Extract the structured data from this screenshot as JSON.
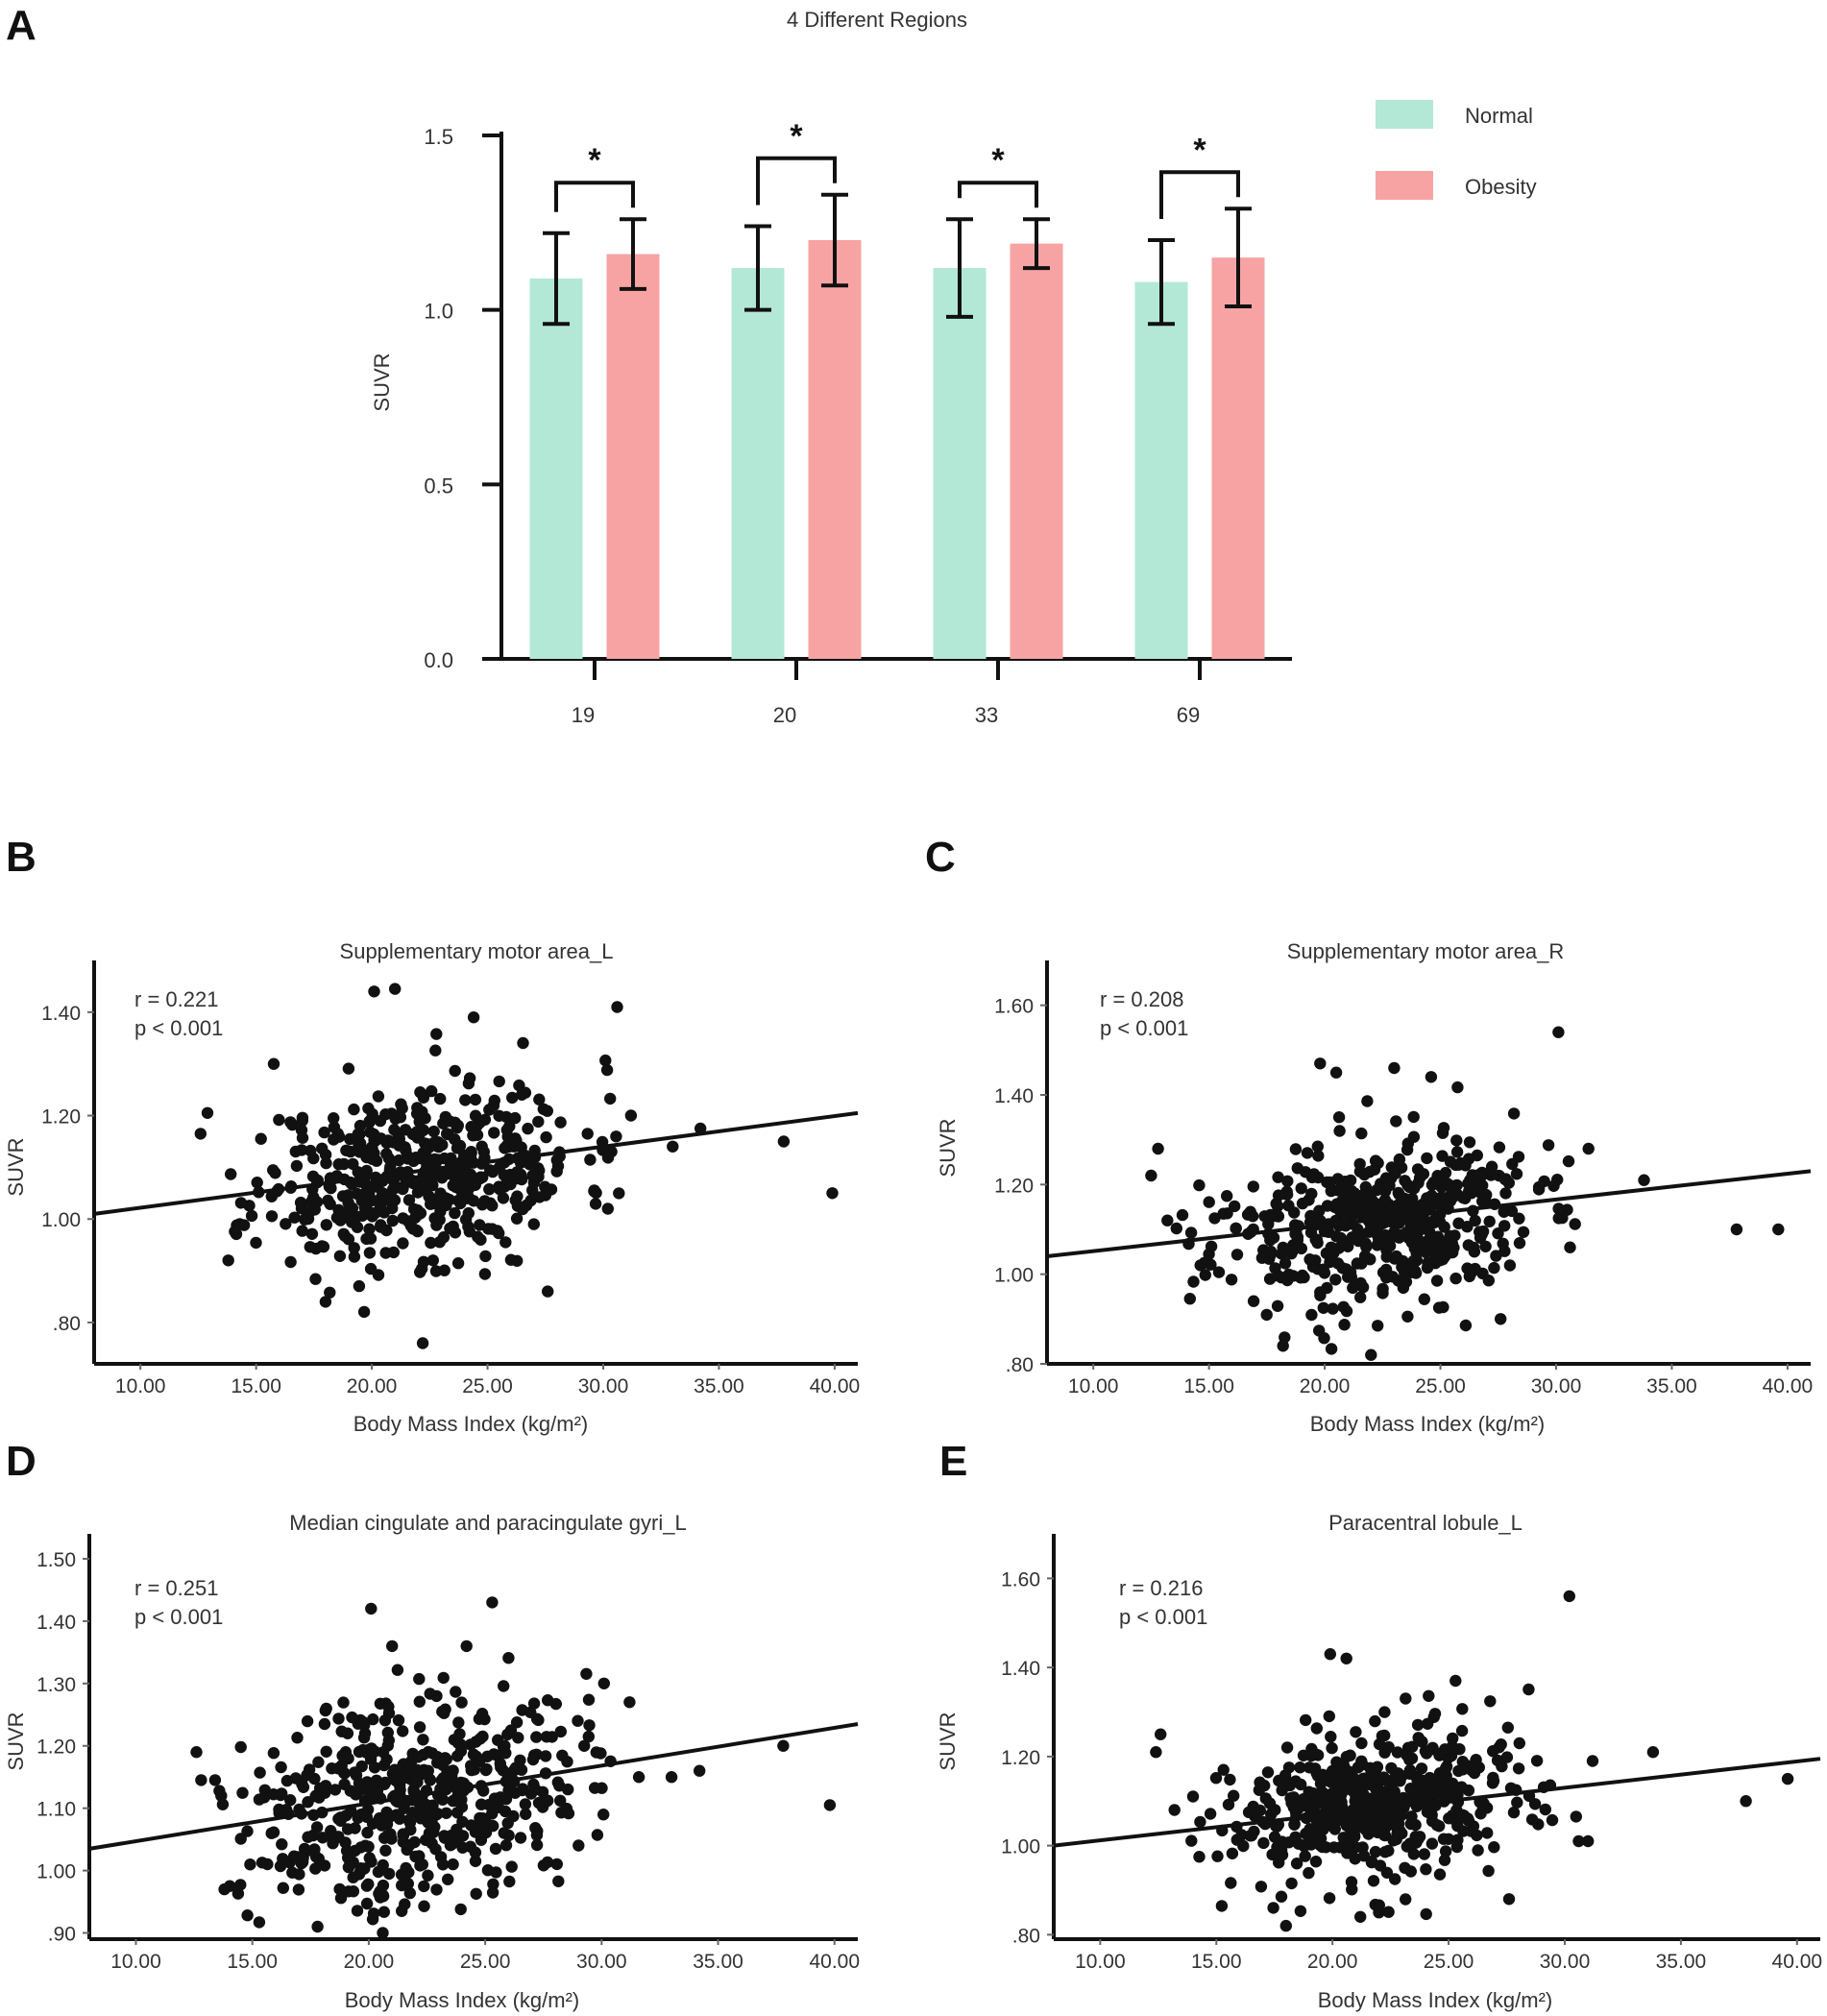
{
  "panels": {
    "a": "A",
    "b": "B",
    "c": "C",
    "d": "D",
    "e": "E"
  },
  "colors": {
    "normal": "#b3e8d6",
    "obesity": "#f7a3a3",
    "ink": "#111111"
  },
  "chart_data": [
    {
      "id": "A",
      "type": "bar",
      "title": "4 Different Regions",
      "xlabel": "",
      "ylabel": "SUVR",
      "ylim": [
        0,
        1.5
      ],
      "yticks": [
        "0.0",
        "0.5",
        "1.0",
        "1.5"
      ],
      "yticks_values": [
        0,
        0.5,
        1.0,
        1.5
      ],
      "categories": [
        "19",
        "20",
        "33",
        "69"
      ],
      "series": [
        {
          "name": "Normal",
          "values": [
            1.09,
            1.12,
            1.12,
            1.08
          ],
          "errors": [
            0.13,
            0.12,
            0.14,
            0.12
          ]
        },
        {
          "name": "Obesity",
          "values": [
            1.16,
            1.2,
            1.19,
            1.15
          ],
          "errors": [
            0.1,
            0.13,
            0.07,
            0.14
          ]
        }
      ],
      "significance": [
        "*",
        "*",
        "*",
        "*"
      ],
      "legend": "top-right"
    },
    {
      "id": "B",
      "type": "scatter",
      "title": "Supplementary motor area_L",
      "xlabel": "Body Mass Index (kg/m²)",
      "ylabel": "SUVR",
      "xlim": [
        8,
        41
      ],
      "ylim": [
        0.72,
        1.5
      ],
      "xticks": [
        "10.00",
        "15.00",
        "20.00",
        "25.00",
        "30.00",
        "35.00",
        "40.00"
      ],
      "xticks_values": [
        10,
        15,
        20,
        25,
        30,
        35,
        40
      ],
      "yticks": [
        ".80",
        "1.00",
        "1.20",
        "1.40"
      ],
      "yticks_values": [
        0.8,
        1.0,
        1.2,
        1.4
      ],
      "r_label": "r = 0.221",
      "p_label": "p < 0.001",
      "fit": {
        "x": [
          8,
          41
        ],
        "y": [
          1.01,
          1.205
        ]
      },
      "seed": 11,
      "center": [
        22.0,
        1.09
      ],
      "spread": [
        3.5,
        0.085
      ],
      "outliers": [
        [
          20.1,
          1.44
        ],
        [
          21.0,
          1.445
        ],
        [
          24.4,
          1.39
        ],
        [
          30.6,
          1.41
        ],
        [
          39.9,
          1.05
        ],
        [
          37.8,
          1.15
        ],
        [
          22.2,
          0.76
        ],
        [
          27.6,
          0.86
        ],
        [
          12.9,
          1.205
        ],
        [
          12.6,
          1.165
        ],
        [
          13.8,
          0.92
        ],
        [
          18.0,
          0.84
        ],
        [
          34.2,
          1.175
        ],
        [
          33.0,
          1.14
        ],
        [
          31.2,
          1.2
        ],
        [
          30.2,
          1.02
        ]
      ]
    },
    {
      "id": "C",
      "type": "scatter",
      "title": "Supplementary motor area_R",
      "xlabel": "Body Mass Index (kg/m²)",
      "ylabel": "SUVR",
      "xlim": [
        8,
        41
      ],
      "ylim": [
        0.8,
        1.7
      ],
      "xticks": [
        "10.00",
        "15.00",
        "20.00",
        "25.00",
        "30.00",
        "35.00",
        "40.00"
      ],
      "xticks_values": [
        10,
        15,
        20,
        25,
        30,
        35,
        40
      ],
      "yticks": [
        ".80",
        "1.00",
        "1.20",
        "1.40",
        "1.60"
      ],
      "yticks_values": [
        0.8,
        1.0,
        1.2,
        1.4,
        1.6
      ],
      "r_label": "r = 0.208",
      "p_label": "p < 0.001",
      "fit": {
        "x": [
          8,
          41
        ],
        "y": [
          1.04,
          1.23
        ]
      },
      "seed": 23,
      "center": [
        22.0,
        1.11
      ],
      "spread": [
        3.5,
        0.09
      ],
      "outliers": [
        [
          30.1,
          1.54
        ],
        [
          19.8,
          1.47
        ],
        [
          20.5,
          1.45
        ],
        [
          23.0,
          1.46
        ],
        [
          24.6,
          1.44
        ],
        [
          39.6,
          1.1
        ],
        [
          37.8,
          1.1
        ],
        [
          22.0,
          0.82
        ],
        [
          18.2,
          0.84
        ],
        [
          12.8,
          1.28
        ],
        [
          12.5,
          1.22
        ],
        [
          13.2,
          1.12
        ],
        [
          33.8,
          1.21
        ],
        [
          31.4,
          1.28
        ],
        [
          27.6,
          0.9
        ],
        [
          30.6,
          1.06
        ]
      ]
    },
    {
      "id": "D",
      "type": "scatter",
      "title": "Median cingulate and paracingulate gyri_L",
      "xlabel": "Body Mass Index (kg/m²)",
      "ylabel": "SUVR",
      "xlim": [
        8,
        41
      ],
      "ylim": [
        0.89,
        1.54
      ],
      "xticks": [
        "10.00",
        "15.00",
        "20.00",
        "25.00",
        "30.00",
        "35.00",
        "40.00"
      ],
      "xticks_values": [
        10,
        15,
        20,
        25,
        30,
        35,
        40
      ],
      "yticks": [
        ".90",
        "1.00",
        "1.10",
        "1.20",
        "1.30",
        "1.40",
        "1.50"
      ],
      "yticks_values": [
        0.9,
        1.0,
        1.1,
        1.2,
        1.3,
        1.4,
        1.5
      ],
      "r_label": "r = 0.251",
      "p_label": "p < 0.001",
      "fit": {
        "x": [
          8,
          41
        ],
        "y": [
          1.035,
          1.235
        ]
      },
      "seed": 37,
      "center": [
        22.0,
        1.12
      ],
      "spread": [
        3.5,
        0.085
      ],
      "outliers": [
        [
          25.3,
          1.43
        ],
        [
          20.1,
          1.42
        ],
        [
          21.0,
          1.36
        ],
        [
          24.2,
          1.36
        ],
        [
          30.1,
          1.3
        ],
        [
          31.2,
          1.27
        ],
        [
          37.8,
          1.2
        ],
        [
          39.8,
          1.105
        ],
        [
          12.6,
          1.19
        ],
        [
          12.8,
          1.145
        ],
        [
          13.4,
          1.145
        ],
        [
          13.8,
          0.97
        ],
        [
          34.2,
          1.16
        ],
        [
          33.0,
          1.15
        ],
        [
          31.6,
          1.15
        ],
        [
          17.8,
          0.91
        ],
        [
          20.6,
          0.9
        ]
      ]
    },
    {
      "id": "E",
      "type": "scatter",
      "title": "Paracentral lobule_L",
      "xlabel": "Body Mass Index (kg/m²)",
      "ylabel": "SUVR",
      "xlim": [
        8,
        41
      ],
      "ylim": [
        0.79,
        1.7
      ],
      "xticks": [
        "10.00",
        "15.00",
        "20.00",
        "25.00",
        "30.00",
        "35.00",
        "40.00"
      ],
      "xticks_values": [
        10,
        15,
        20,
        25,
        30,
        35,
        40
      ],
      "yticks": [
        ".80",
        "1.00",
        "1.20",
        "1.40",
        "1.60"
      ],
      "yticks_values": [
        0.8,
        1.0,
        1.2,
        1.4,
        1.6
      ],
      "r_label": "r = 0.216",
      "p_label": "p < 0.001",
      "fit": {
        "x": [
          8,
          41
        ],
        "y": [
          1.0,
          1.195
        ]
      },
      "seed": 53,
      "center": [
        22.0,
        1.09
      ],
      "spread": [
        3.5,
        0.085
      ],
      "outliers": [
        [
          30.2,
          1.56
        ],
        [
          19.9,
          1.43
        ],
        [
          20.6,
          1.42
        ],
        [
          25.3,
          1.37
        ],
        [
          33.8,
          1.21
        ],
        [
          31.2,
          1.19
        ],
        [
          37.8,
          1.1
        ],
        [
          39.6,
          1.15
        ],
        [
          12.6,
          1.25
        ],
        [
          12.4,
          1.21
        ],
        [
          13.2,
          1.08
        ],
        [
          18.0,
          0.82
        ],
        [
          21.2,
          0.84
        ],
        [
          22.0,
          0.85
        ],
        [
          27.6,
          0.88
        ],
        [
          30.6,
          1.01
        ],
        [
          31.0,
          1.01
        ]
      ]
    }
  ]
}
